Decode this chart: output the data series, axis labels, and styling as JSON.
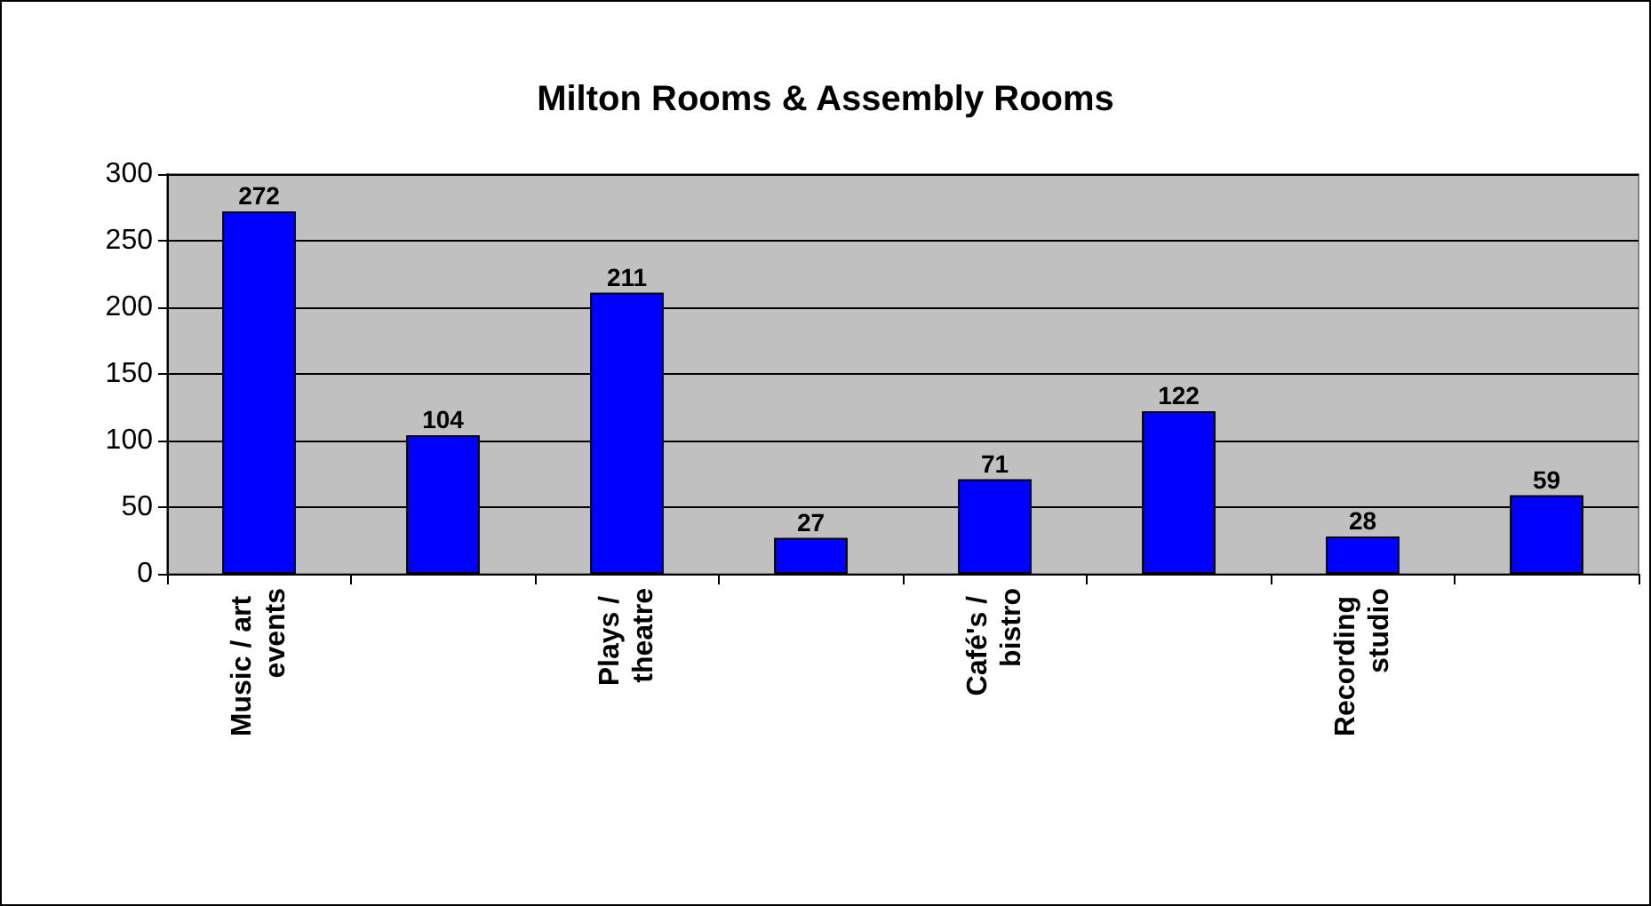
{
  "chart_data": {
    "type": "bar",
    "title": "Milton Rooms & Assembly Rooms",
    "categories": [
      "Music / art events",
      null,
      "Plays / theatre",
      null,
      "Café's / bistro",
      null,
      "Recording studio",
      null
    ],
    "values": [
      272,
      104,
      211,
      27,
      71,
      122,
      28,
      59
    ],
    "color": "#0000ff",
    "ylim": [
      0,
      300
    ],
    "yticks": [
      0,
      50,
      100,
      150,
      200,
      250,
      300
    ],
    "grid": "y",
    "data_labels": true
  }
}
